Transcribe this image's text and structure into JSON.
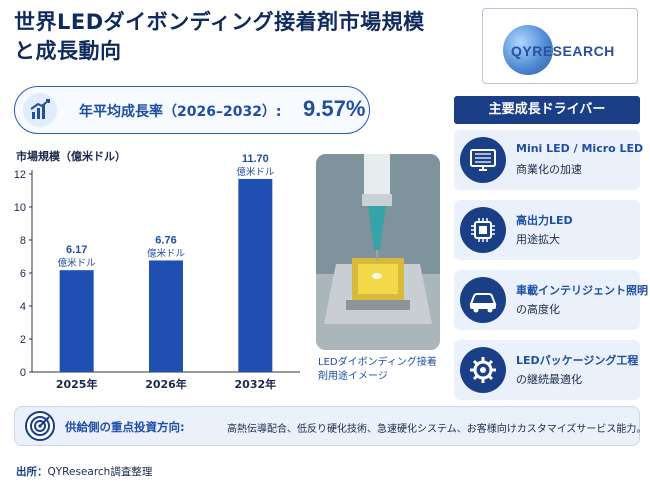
{
  "title": {
    "line1": "世界LEDダイボンディング接着剤市場規模",
    "line2": "と成長動向"
  },
  "logo": {
    "text": "QYRESEARCH"
  },
  "cagr": {
    "label": "年平均成長率（2026–2032）:",
    "value": "9.57%"
  },
  "chart_data": {
    "type": "bar",
    "ylabel": "市場規模（億米ドル）",
    "categories": [
      "2025年",
      "2026年",
      "2032年"
    ],
    "values": [
      6.17,
      6.76,
      11.7
    ],
    "value_labels": [
      "6.17",
      "6.76",
      "11.70"
    ],
    "unit_label": "億米ドル",
    "ylim": [
      0,
      12
    ],
    "yticks": [
      "0",
      "2",
      "4",
      "6",
      "8",
      "10",
      "12"
    ],
    "bar_color": "#1f4fb0",
    "grid": false
  },
  "photo": {
    "caption": "LEDダイボンディング接着剤用途イメージ"
  },
  "drivers": {
    "header": "主要成長ドライバー",
    "items": [
      {
        "icon": "monitor-icon",
        "line1": "Mini LED / Micro LED",
        "line2": "商業化の加速"
      },
      {
        "icon": "chip-icon",
        "line1": "高出力LED",
        "line2": "用途拡大"
      },
      {
        "icon": "car-icon",
        "line1": "車載インテリジェント照明",
        "line2": "の高度化"
      },
      {
        "icon": "gear-icon",
        "line1": "LEDパッケージング工程",
        "line2": "の継続最適化"
      }
    ]
  },
  "investment": {
    "label": "供給側の重点投資方向:",
    "text": "高熱伝導配合、低反り硬化技術、急速硬化システム、お客様向けカスタマイズサービス能力。"
  },
  "source": {
    "label": "出所：",
    "text": "QYResearch調査整理"
  },
  "colors": {
    "navy": "#1a3f86",
    "accent": "#1f4ea3",
    "panel": "#eaf1fb"
  }
}
